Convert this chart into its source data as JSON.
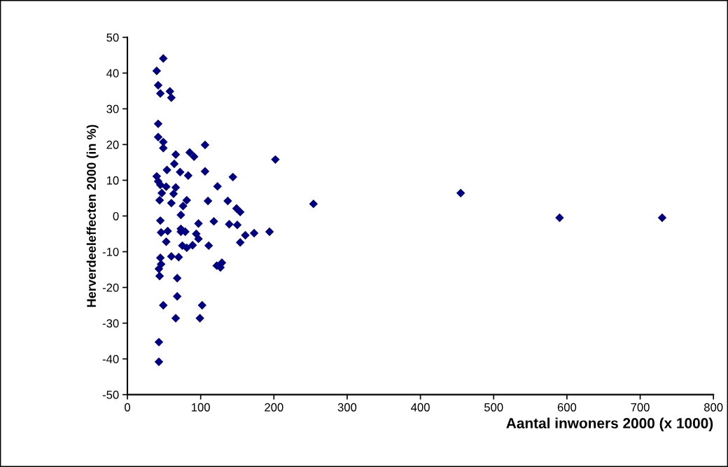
{
  "chart_data": {
    "type": "scatter",
    "xlabel": "Aantal inwoners 2000 (x 1000)",
    "ylabel": "Herverdeeleffecten 2000 (in %)",
    "xlim": [
      0,
      800
    ],
    "xticks": [
      0,
      100,
      200,
      300,
      400,
      500,
      600,
      700,
      800
    ],
    "ylim": [
      -50,
      50
    ],
    "yticks": [
      -50,
      -40,
      -30,
      -20,
      -10,
      0,
      10,
      20,
      30,
      40,
      50
    ],
    "grid": false,
    "legend": false,
    "marker": "diamond",
    "series": [
      {
        "color": "#000080",
        "x": [
          40,
          42,
          45,
          53,
          66,
          63,
          47,
          44,
          60,
          76,
          81,
          110,
          137,
          149,
          154,
          73,
          123,
          144,
          106,
          83,
          72,
          64,
          54,
          66,
          85,
          91,
          106,
          49,
          49,
          42,
          42,
          60,
          58,
          45,
          42,
          40,
          49,
          45,
          97,
          118,
          139,
          150,
          173,
          161,
          154,
          46,
          55,
          73,
          73,
          79,
          94,
          97,
          53,
          75,
          81,
          89,
          111,
          45,
          60,
          70,
          46,
          43,
          44,
          68,
          129,
          122,
          127,
          68,
          49,
          102,
          66,
          99,
          43,
          43,
          202,
          254,
          455,
          590,
          730,
          194
        ],
        "values": [
          11.1,
          9.7,
          8.7,
          8.2,
          8.0,
          6.2,
          6.4,
          4.4,
          3.6,
          2.8,
          4.4,
          4.2,
          4.2,
          2.1,
          1.1,
          0.3,
          8.3,
          10.9,
          12.5,
          11.3,
          12.3,
          14.6,
          12.9,
          17.2,
          17.8,
          16.6,
          19.9,
          19.0,
          20.7,
          22.1,
          25.8,
          33.1,
          34.9,
          34.3,
          36.6,
          40.6,
          44.1,
          -1.3,
          -2.1,
          -1.5,
          -2.3,
          -2.5,
          -4.8,
          -5.4,
          -7.4,
          -4.6,
          -4.2,
          -3.6,
          -4.4,
          -4.4,
          -5.0,
          -6.4,
          -7.2,
          -8.3,
          -8.9,
          -8.2,
          -8.3,
          -11.7,
          -11.3,
          -11.5,
          -13.5,
          -14.8,
          -16.8,
          -17.4,
          -13.1,
          -13.9,
          -14.4,
          -22.5,
          -25.0,
          -25.0,
          -28.6,
          -28.6,
          -35.3,
          -40.8,
          15.8,
          3.4,
          6.4,
          -0.5,
          -0.5,
          -4.4
        ]
      }
    ]
  }
}
